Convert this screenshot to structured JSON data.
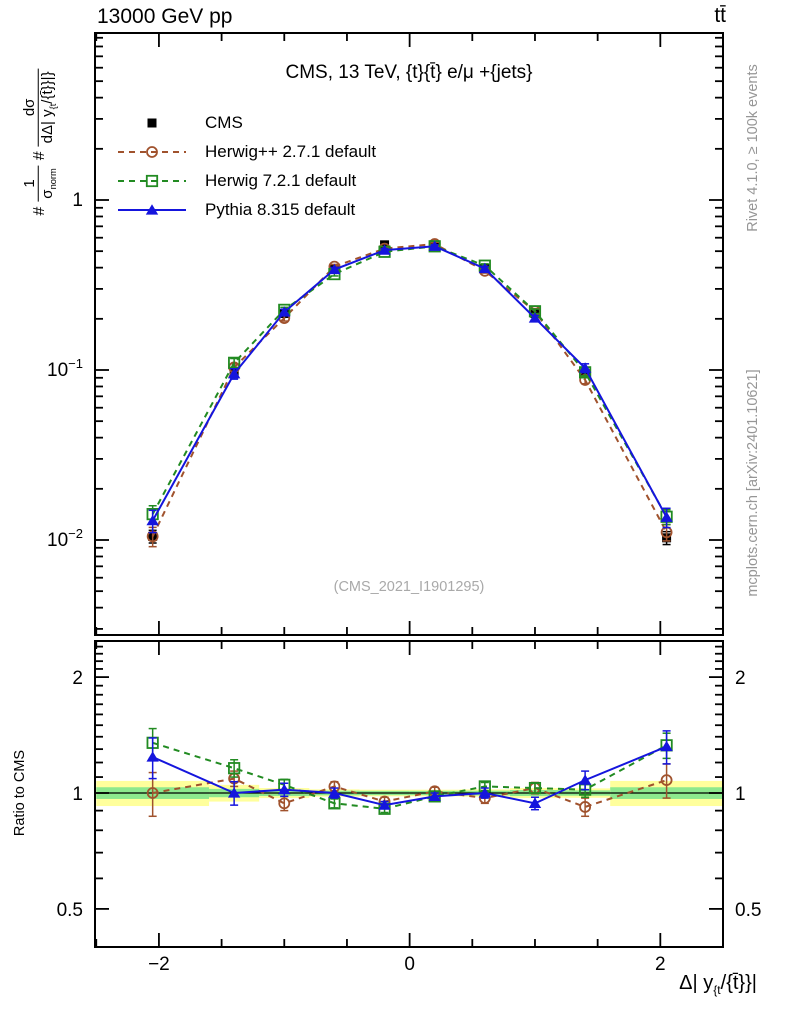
{
  "header": {
    "left": "13000 GeV pp",
    "right": "tt̄"
  },
  "side_notes": {
    "top": "Rivet 4.1.0, ≥ 100k events",
    "bottom": "mcplots.cern.ch [arXiv:2401.10621]"
  },
  "watermark": "(CMS_2021_I1901295)",
  "colors": {
    "data": "#000000",
    "herwigpp": "#a0522d",
    "herwig7": "#228b22",
    "pythia": "#1515dd",
    "band_yellow": "#ffff9c",
    "band_green": "#8de88d",
    "side_text": "#969696",
    "watermark_text": "#a9a9a9"
  },
  "chart_data": {
    "type": "line",
    "title": "CMS, 13 TeV, {t}{t̄} e/μ +{jets}",
    "xlabel": "Δ| y_{t}/{t̄}}|",
    "ylabel": "# 1/σ_norm # dσ/dΔ| y_{t}/{t̄}}|}",
    "xlim": [
      -2.51,
      2.5
    ],
    "main_ylim": [
      0.0029,
      9.4
    ],
    "grid": false,
    "legend_position": "top-left",
    "x": [
      -2.05,
      -1.4,
      -1.0,
      -0.6,
      -0.2,
      0.2,
      0.6,
      1.0,
      1.4,
      2.05
    ],
    "series": [
      {
        "name": "CMS",
        "marker": "filled-square",
        "line": "none",
        "color_key": "data",
        "values": [
          0.0105,
          0.095,
          0.215,
          0.39,
          0.545,
          0.545,
          0.395,
          0.215,
          0.095,
          0.0103
        ],
        "yerr": [
          0.0009,
          0.003,
          0.005,
          0.007,
          0.008,
          0.008,
          0.007,
          0.005,
          0.003,
          0.0009
        ]
      },
      {
        "name": "Herwig++ 2.7.1 default",
        "marker": "open-circle",
        "line": "dashed",
        "color_key": "herwigpp",
        "values": [
          0.0105,
          0.1036,
          0.2021,
          0.4056,
          0.5178,
          0.5505,
          0.3832,
          0.2215,
          0.0874,
          0.0111
        ],
        "ratio": [
          1.0,
          1.09,
          0.94,
          1.04,
          0.95,
          1.01,
          0.97,
          1.03,
          0.92,
          1.08
        ],
        "ratio_err": [
          0.13,
          0.05,
          0.04,
          0.03,
          0.025,
          0.025,
          0.03,
          0.035,
          0.05,
          0.11
        ]
      },
      {
        "name": "Herwig 7.2.1 default",
        "marker": "open-square",
        "line": "dashed",
        "color_key": "herwig7",
        "values": [
          0.0142,
          0.1102,
          0.2258,
          0.3666,
          0.496,
          0.5341,
          0.4108,
          0.2215,
          0.0969,
          0.0137
        ],
        "ratio": [
          1.35,
          1.16,
          1.05,
          0.94,
          0.91,
          0.98,
          1.04,
          1.03,
          1.02,
          1.33
        ],
        "ratio_err": [
          0.12,
          0.06,
          0.035,
          0.025,
          0.02,
          0.02,
          0.025,
          0.03,
          0.045,
          0.1
        ]
      },
      {
        "name": "Pythia 8.315 default",
        "marker": "filled-triangle",
        "line": "solid",
        "color_key": "pythia",
        "values": [
          0.013,
          0.095,
          0.2193,
          0.39,
          0.5069,
          0.5341,
          0.395,
          0.2021,
          0.1026,
          0.0136
        ],
        "ratio": [
          1.24,
          1.0,
          1.02,
          1.0,
          0.93,
          0.98,
          1.0,
          0.94,
          1.08,
          1.32
        ],
        "ratio_err": [
          0.15,
          0.07,
          0.04,
          0.03,
          0.02,
          0.02,
          0.03,
          0.035,
          0.06,
          0.13
        ]
      }
    ],
    "axes": {
      "x": {
        "ticks": [
          {
            "v": -2,
            "label": "−2"
          },
          {
            "v": 0,
            "label": "0"
          },
          {
            "v": 2,
            "label": "2"
          }
        ],
        "minor_step": 0.5
      },
      "y_main": {
        "scale": "log",
        "ticks": [
          {
            "v": 1,
            "label": "1"
          },
          {
            "v": 0.1,
            "label": "10^−1"
          },
          {
            "v": 0.01,
            "label": "10^−2"
          }
        ]
      },
      "y_ratio": {
        "scale": "log",
        "range": [
          0.4,
          2.5
        ],
        "ticks": [
          {
            "v": 2,
            "label": "2"
          },
          {
            "v": 1,
            "label": "1"
          },
          {
            "v": 0.5,
            "label": "0.5"
          }
        ]
      }
    },
    "ratio_panel": {
      "ylabel": "Ratio to CMS",
      "reference": 1,
      "band_edges": [
        -2.5,
        -1.6,
        -1.2,
        -0.8,
        -0.4,
        0,
        0.4,
        0.8,
        1.2,
        1.6,
        2.5
      ],
      "band_yellow": [
        0.075,
        0.05,
        0.03,
        0.022,
        0.02,
        0.02,
        0.022,
        0.03,
        0.028,
        0.075
      ],
      "band_green": [
        0.035,
        0.025,
        0.018,
        0.014,
        0.013,
        0.013,
        0.014,
        0.018,
        0.016,
        0.035
      ]
    },
    "ylabel_parts": {
      "hash1": "#",
      "frac1_num": "1",
      "frac1_den_base": "σ",
      "frac1_den_sub": "norm",
      "hash2": "#",
      "frac2_num": "dσ",
      "frac2_den_main": "dΔ| y",
      "frac2_den_sub": "{t",
      "frac2_den_tail": "/{t̄}}|}"
    },
    "xlabel_parts": {
      "main": "Δ| y",
      "sub": "{t",
      "tail": "/{t̄}}|"
    }
  }
}
